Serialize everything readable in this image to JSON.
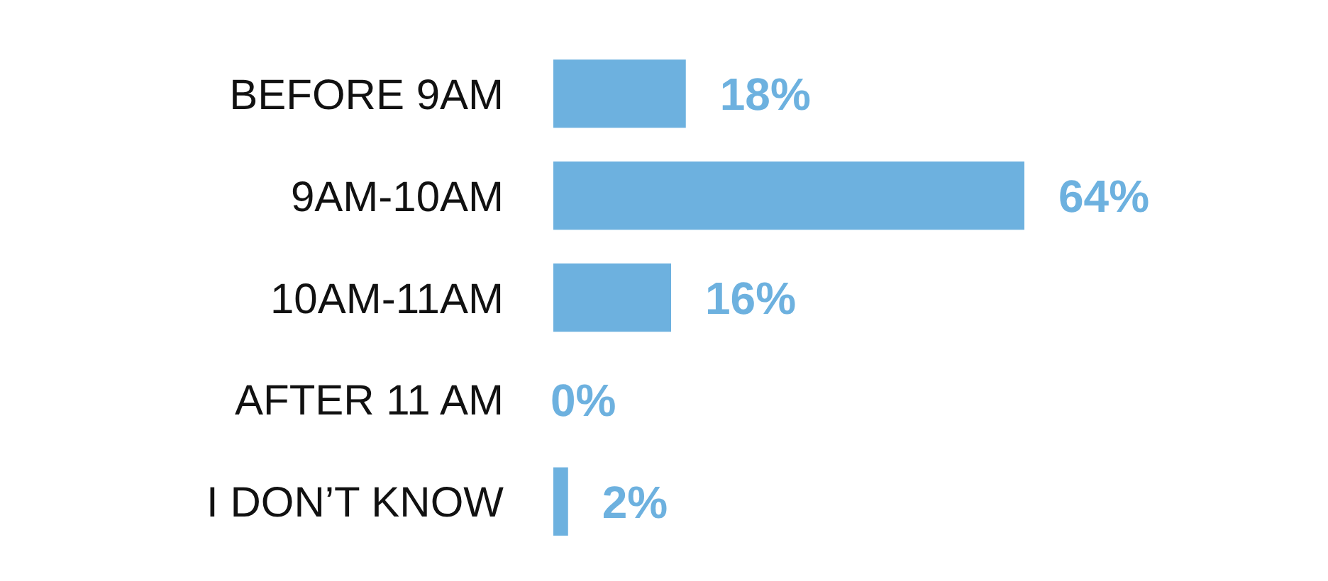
{
  "chart_data": {
    "type": "bar",
    "orientation": "horizontal",
    "categories": [
      "BEFORE 9AM",
      "9AM-10AM",
      "10AM-11AM",
      "AFTER 11 AM",
      "I DON’T KNOW"
    ],
    "values": [
      18,
      64,
      16,
      0,
      2
    ],
    "value_labels": [
      "18%",
      "64%",
      "16%",
      "0%",
      "2%"
    ],
    "color": "#6db1df"
  }
}
